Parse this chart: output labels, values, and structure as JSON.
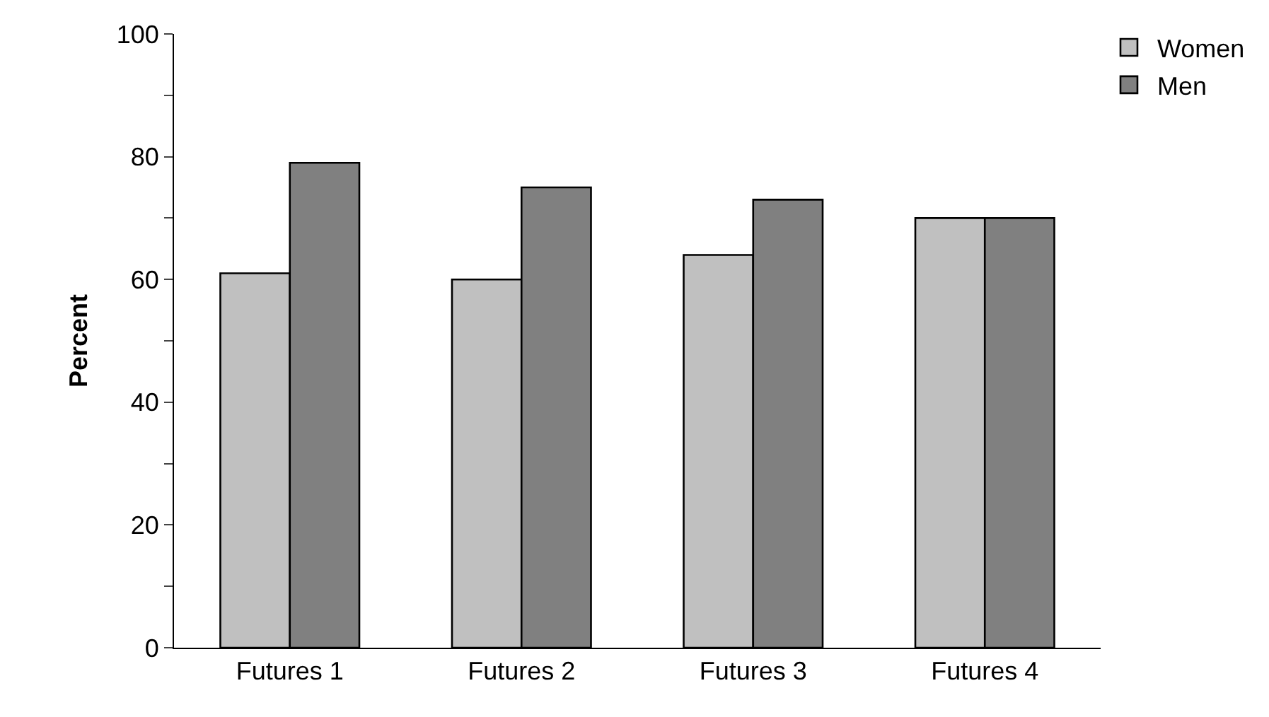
{
  "chart_data": {
    "type": "bar",
    "ylabel": "Percent",
    "categories": [
      "Futures 1",
      "Futures 2",
      "Futures 3",
      "Futures 4"
    ],
    "series": [
      {
        "name": "Women",
        "color": "#c0c0c0",
        "values": [
          61,
          60,
          64,
          70
        ]
      },
      {
        "name": "Men",
        "color": "#808080",
        "values": [
          79,
          75,
          73,
          70
        ]
      }
    ],
    "ylim": [
      0,
      100
    ],
    "yticks": [
      0,
      {
        "value": 10,
        "label": null
      },
      20,
      {
        "value": 30,
        "label": null
      },
      40,
      {
        "value": 50,
        "label": null
      },
      60,
      {
        "value": 70,
        "label": null
      },
      80,
      {
        "value": 90,
        "label": null
      },
      100
    ],
    "legend": "top right"
  }
}
